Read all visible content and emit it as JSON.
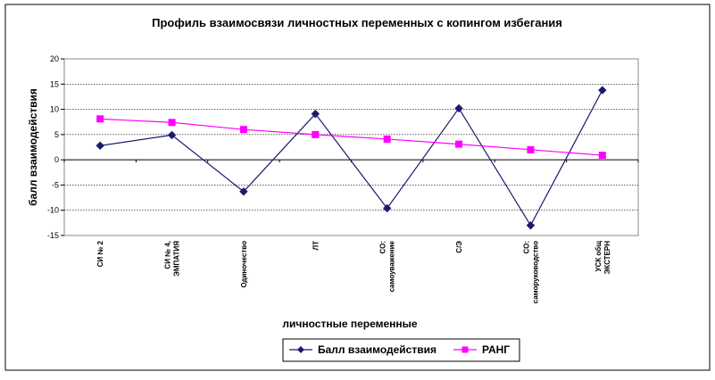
{
  "chart_data": {
    "type": "line",
    "title": "Профиль взаимосвязи личностных переменных с копингом избегания",
    "xlabel": "личностные переменные",
    "ylabel": "балл взаимодействия",
    "ylim": [
      -15,
      20
    ],
    "yticks": [
      -15,
      -10,
      -5,
      0,
      5,
      10,
      15,
      20
    ],
    "grid": "horizontal dotted",
    "legend_position": "bottom",
    "categories": [
      [
        "СИ № 2"
      ],
      [
        "СИ № 4,",
        "ЭМПАТИЯ"
      ],
      [
        "Одиночество"
      ],
      [
        "ЛТ"
      ],
      [
        "СО:",
        "самоуважение"
      ],
      [
        "С/Э"
      ],
      [
        "СО:",
        "саморуководство"
      ],
      [
        "УСК общ",
        "ЭКСТЕРН"
      ]
    ],
    "series": [
      {
        "name": "Балл взаимодействия",
        "color": "#1a1a6e",
        "marker": "diamond",
        "values": [
          2.8,
          4.9,
          -6.3,
          9.1,
          -9.6,
          10.2,
          -13.0,
          13.8
        ]
      },
      {
        "name": "РАНГ",
        "color": "#ff00ff",
        "marker": "square",
        "values": [
          8.1,
          7.4,
          6.0,
          5.0,
          4.1,
          3.1,
          2.0,
          0.9
        ]
      }
    ]
  }
}
